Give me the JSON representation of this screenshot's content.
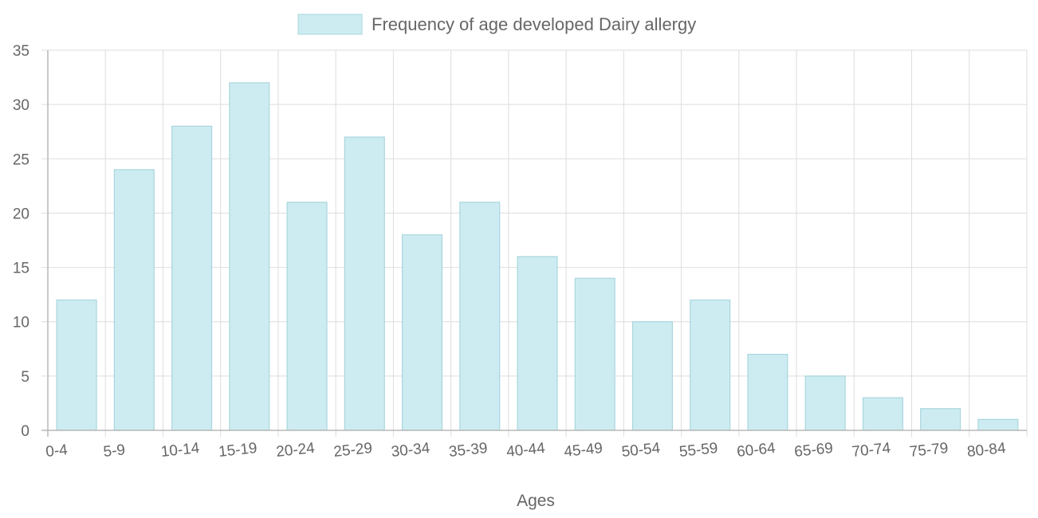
{
  "chart_data": {
    "type": "bar",
    "categories": [
      "0-4",
      "5-9",
      "10-14",
      "15-19",
      "20-24",
      "25-29",
      "30-34",
      "35-39",
      "40-44",
      "45-49",
      "50-54",
      "55-59",
      "60-64",
      "65-69",
      "70-74",
      "75-79",
      "80-84"
    ],
    "series": [
      {
        "name": "Frequency of age developed Dairy allergy",
        "values": [
          12,
          24,
          28,
          32,
          21,
          27,
          18,
          21,
          16,
          14,
          10,
          12,
          7,
          5,
          3,
          2,
          1
        ]
      }
    ],
    "xlabel": "Ages",
    "ylabel": "",
    "ylim": [
      0,
      35
    ],
    "yticks": [
      0,
      5,
      10,
      15,
      20,
      25,
      30,
      35
    ],
    "grid": true,
    "legend_position": "top",
    "colors": {
      "bar_fill": "#cdecf1",
      "bar_border": "#a9d6de",
      "grid": "#dedede",
      "text": "#666666"
    }
  }
}
